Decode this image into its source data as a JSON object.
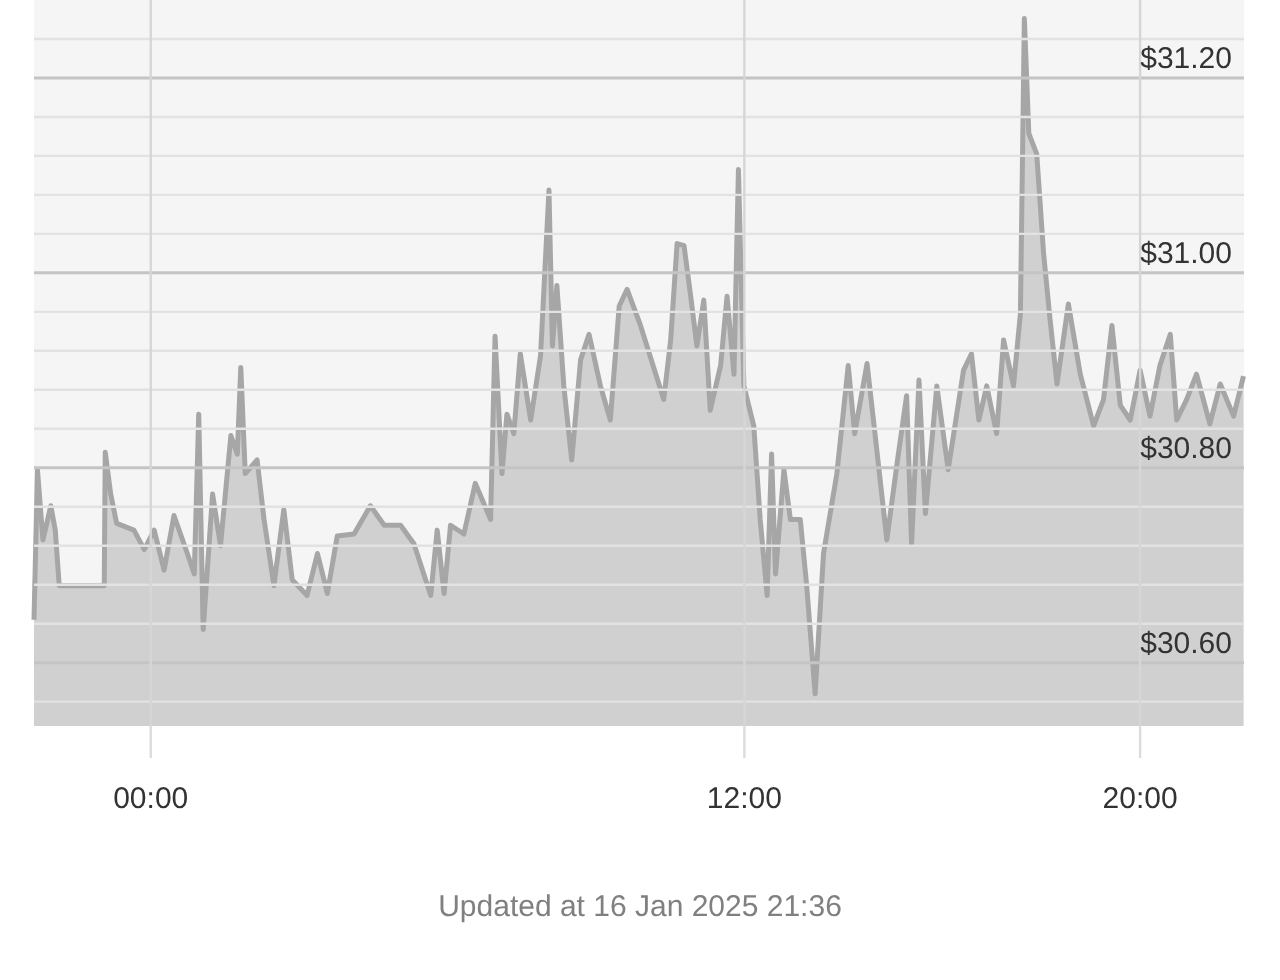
{
  "chart_data": {
    "type": "area",
    "annotations": [
      "Updated at 16 Jan 2025 21:36"
    ],
    "x": [
      -2.36,
      -2.29,
      -2.18,
      -2.02,
      -1.93,
      -1.85,
      -0.94,
      -0.92,
      -0.81,
      -0.69,
      -0.34,
      -0.13,
      0.07,
      0.27,
      0.47,
      0.74,
      0.88,
      0.97,
      1.06,
      1.25,
      1.41,
      1.62,
      1.75,
      1.82,
      1.91,
      2.15,
      2.29,
      2.49,
      2.69,
      2.86,
      3.16,
      3.37,
      3.57,
      3.77,
      4.11,
      4.44,
      4.72,
      5.05,
      5.32,
      5.66,
      5.79,
      5.93,
      6.06,
      6.33,
      6.56,
      6.87,
      6.96,
      7.1,
      7.2,
      7.34,
      7.47,
      7.68,
      7.88,
      8.05,
      8.12,
      8.21,
      8.35,
      8.51,
      8.69,
      8.86,
      9.09,
      9.29,
      9.47,
      9.63,
      9.9,
      10.37,
      10.51,
      10.64,
      10.78,
      10.91,
      11.04,
      11.18,
      11.31,
      11.52,
      11.65,
      11.79,
      11.88,
      11.99,
      12.19,
      12.32,
      12.46,
      12.55,
      12.63,
      12.8,
      12.93,
      13.13,
      13.26,
      13.43,
      13.6,
      13.87,
      14.1,
      14.23,
      14.48,
      14.64,
      14.88,
      15.08,
      15.28,
      15.38,
      15.53,
      15.66,
      15.89,
      16.12,
      16.43,
      16.59,
      16.74,
      16.9,
      17.1,
      17.24,
      17.44,
      17.58,
      17.66,
      17.75,
      17.91,
      18.05,
      18.18,
      18.32,
      18.55,
      18.79,
      19.06,
      19.26,
      19.43,
      19.6,
      19.8,
      20.0,
      20.2,
      20.4,
      20.61,
      20.74,
      20.94,
      21.14,
      21.41,
      21.62,
      21.89,
      22.09
    ],
    "series": [
      {
        "color": "#a6a6a6",
        "values": [
          30.644,
          30.798,
          30.726,
          30.761,
          30.736,
          30.679,
          30.679,
          30.816,
          30.773,
          30.743,
          30.736,
          30.716,
          30.736,
          30.695,
          30.751,
          30.712,
          30.691,
          30.855,
          30.634,
          30.773,
          30.72,
          30.833,
          30.814,
          30.903,
          30.794,
          30.808,
          30.747,
          30.679,
          30.757,
          30.685,
          30.669,
          30.712,
          30.671,
          30.73,
          30.732,
          30.761,
          30.741,
          30.741,
          30.722,
          30.669,
          30.736,
          30.671,
          30.741,
          30.732,
          30.784,
          30.747,
          30.935,
          30.794,
          30.855,
          30.835,
          30.917,
          30.849,
          30.915,
          31.085,
          30.925,
          30.987,
          30.884,
          30.808,
          30.911,
          30.937,
          30.884,
          30.849,
          30.966,
          30.983,
          30.946,
          30.87,
          30.931,
          31.03,
          31.028,
          30.978,
          30.925,
          30.972,
          30.859,
          30.905,
          30.976,
          30.896,
          31.106,
          30.884,
          30.843,
          30.747,
          30.669,
          30.814,
          30.691,
          30.798,
          30.747,
          30.747,
          30.679,
          30.568,
          30.712,
          30.794,
          30.905,
          30.835,
          30.907,
          30.835,
          30.726,
          30.802,
          30.874,
          30.722,
          30.89,
          30.753,
          30.884,
          30.798,
          30.9,
          30.917,
          30.849,
          30.884,
          30.835,
          30.931,
          30.884,
          30.958,
          31.261,
          31.143,
          31.122,
          31.019,
          30.952,
          30.886,
          30.968,
          30.896,
          30.843,
          30.87,
          30.946,
          30.864,
          30.849,
          30.9,
          30.853,
          30.905,
          30.937,
          30.849,
          30.87,
          30.896,
          30.845,
          30.886,
          30.853,
          30.894
        ]
      }
    ],
    "xlim": [
      -2.36,
      22.1
    ],
    "xticks": [
      {
        "value": 0,
        "label": "00:00"
      },
      {
        "value": 12,
        "label": "12:00"
      },
      {
        "value": 20,
        "label": "20:00"
      }
    ],
    "ylim": [
      30.535,
      31.28
    ],
    "yticks": [
      {
        "value": 30.56,
        "label": null
      },
      {
        "value": 30.6,
        "label": "$30.60"
      },
      {
        "value": 30.64,
        "label": null
      },
      {
        "value": 30.68,
        "label": null
      },
      {
        "value": 30.72,
        "label": null
      },
      {
        "value": 30.76,
        "label": null
      },
      {
        "value": 30.8,
        "label": "$30.80"
      },
      {
        "value": 30.84,
        "label": null
      },
      {
        "value": 30.88,
        "label": null
      },
      {
        "value": 30.92,
        "label": null
      },
      {
        "value": 30.96,
        "label": null
      },
      {
        "value": 31.0,
        "label": "$31.00"
      },
      {
        "value": 31.04,
        "label": null
      },
      {
        "value": 31.08,
        "label": null
      },
      {
        "value": 31.12,
        "label": null
      },
      {
        "value": 31.16,
        "label": null
      },
      {
        "value": 31.2,
        "label": "$31.20"
      },
      {
        "value": 31.24,
        "label": null
      }
    ],
    "grid": true
  }
}
